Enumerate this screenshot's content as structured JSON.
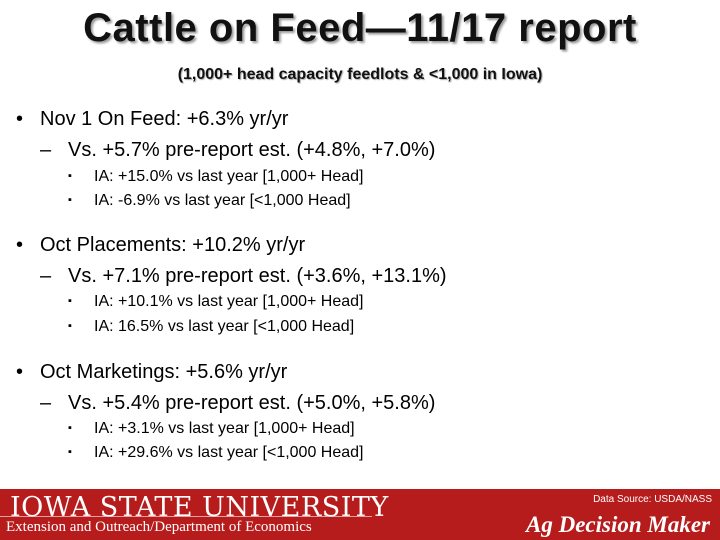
{
  "title": "Cattle on Feed—11/17 report",
  "subtitle": "(1,000+ head capacity feedlots & <1,000 in Iowa)",
  "bullet_char": "•",
  "dash_char": "–",
  "square_char": "▪",
  "sections": [
    {
      "main": "Nov 1 On Feed: +6.3% yr/yr",
      "sub": "Vs. +5.7% pre-report est. (+4.8%, +7.0%)",
      "items": [
        "IA: +15.0% vs last year [1,000+ Head]",
        "IA: -6.9% vs last year [<1,000 Head]"
      ]
    },
    {
      "main": "Oct Placements: +10.2% yr/yr",
      "sub": "Vs. +7.1% pre-report est. (+3.6%, +13.1%)",
      "items": [
        "IA: +10.1% vs last year [1,000+ Head]",
        "IA: 16.5% vs last year [<1,000 Head]"
      ]
    },
    {
      "main": "Oct Marketings: +5.6% yr/yr",
      "sub": "Vs. +5.4% pre-report est. (+5.0%, +5.8%)",
      "items": [
        "IA: +3.1% vs last year [1,000+ Head]",
        "IA: +29.6% vs last year [<1,000 Head]"
      ]
    }
  ],
  "footer": {
    "logo_text": "IOWA STATE UNIVERSITY",
    "extension": "Extension and Outreach/Department of Economics",
    "source": "Data Source: USDA/NASS",
    "brand": "Ag Decision Maker",
    "color": "#b71c1c"
  }
}
